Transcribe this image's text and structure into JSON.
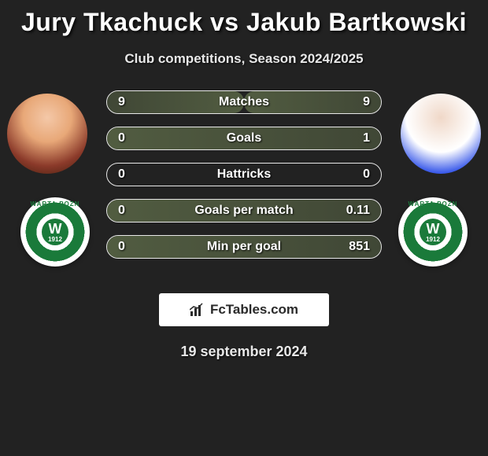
{
  "title": "Jury Tkachuck vs Jakub Bartkowski",
  "subtitle": "Club competitions, Season 2024/2025",
  "brand_text": "FcTables.com",
  "footer_date": "19 september 2024",
  "colors": {
    "background": "#222222",
    "bar_border": "#e8e8e8",
    "bar_fill": "rgba(120,140,90,0.45)",
    "text": "#ffffff",
    "subtitle_text": "#e8e8e8",
    "brand_bg": "#ffffff",
    "brand_text": "#2a2a2a",
    "club_green": "#1a7a3a"
  },
  "typography": {
    "title_fontsize": 32,
    "title_weight": 900,
    "subtitle_fontsize": 17,
    "stat_fontsize": 16,
    "footer_fontsize": 18,
    "brand_fontsize": 17
  },
  "players": {
    "left": {
      "name": "Jury Tkachuck",
      "club": "Warta Poznań",
      "club_year": "1912"
    },
    "right": {
      "name": "Jakub Bartkowski",
      "club": "Warta Poznań",
      "club_year": "1912"
    }
  },
  "stats": [
    {
      "label": "Matches",
      "left_val": "9",
      "right_val": "9",
      "left_fill_pct": 50,
      "right_fill_pct": 50
    },
    {
      "label": "Goals",
      "left_val": "0",
      "right_val": "1",
      "left_fill_pct": 0,
      "right_fill_pct": 100
    },
    {
      "label": "Hattricks",
      "left_val": "0",
      "right_val": "0",
      "left_fill_pct": 0,
      "right_fill_pct": 0
    },
    {
      "label": "Goals per match",
      "left_val": "0",
      "right_val": "0.11",
      "left_fill_pct": 0,
      "right_fill_pct": 100
    },
    {
      "label": "Min per goal",
      "left_val": "0",
      "right_val": "851",
      "left_fill_pct": 0,
      "right_fill_pct": 100
    }
  ]
}
